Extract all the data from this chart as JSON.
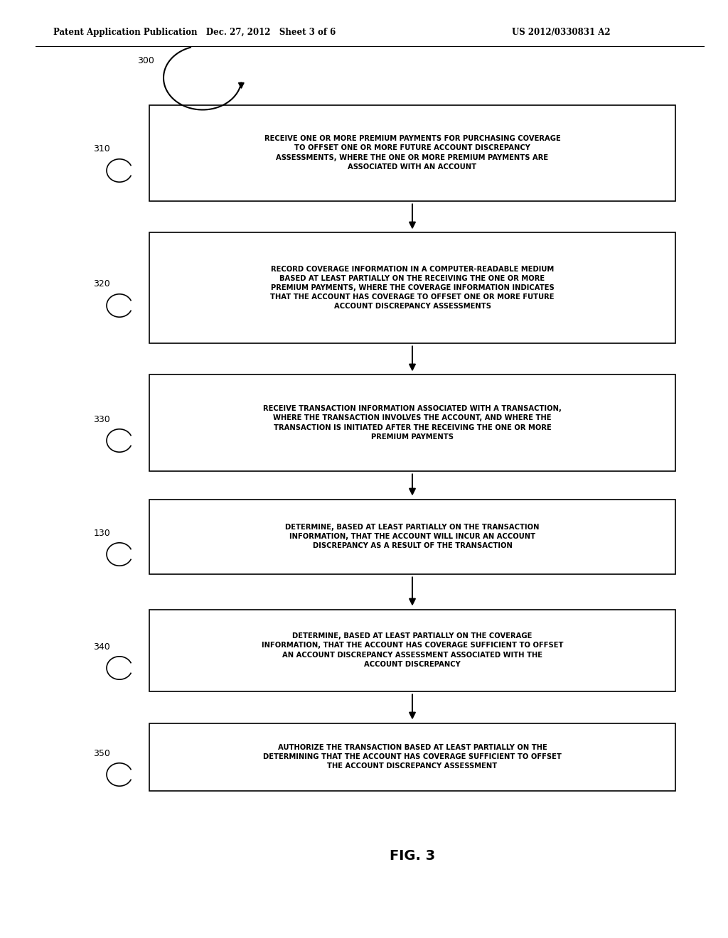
{
  "bg_color": "#ffffff",
  "header_left": "Patent Application Publication   Dec. 27, 2012   Sheet 3 of 6",
  "header_right": "US 2012/0330831 A2",
  "fig_label": "FIG. 3",
  "start_label": "300",
  "boxes": [
    {
      "label": "310",
      "text": "RECEIVE ONE OR MORE PREMIUM PAYMENTS FOR PURCHASING COVERAGE\nTO OFFSET ONE OR MORE FUTURE ACCOUNT DISCREPANCY\nASSESSMENTS, WHERE THE ONE OR MORE PREMIUM PAYMENTS ARE\nASSOCIATED WITH AN ACCOUNT"
    },
    {
      "label": "320",
      "text": "RECORD COVERAGE INFORMATION IN A COMPUTER-READABLE MEDIUM\nBASED AT LEAST PARTIALLY ON THE RECEIVING THE ONE OR MORE\nPREMIUM PAYMENTS, WHERE THE COVERAGE INFORMATION INDICATES\nTHAT THE ACCOUNT HAS COVERAGE TO OFFSET ONE OR MORE FUTURE\nACCOUNT DISCREPANCY ASSESSMENTS"
    },
    {
      "label": "330",
      "text": "RECEIVE TRANSACTION INFORMATION ASSOCIATED WITH A TRANSACTION,\nWHERE THE TRANSACTION INVOLVES THE ACCOUNT, AND WHERE THE\nTRANSACTION IS INITIATED AFTER THE RECEIVING THE ONE OR MORE\nPREMIUM PAYMENTS"
    },
    {
      "label": "130",
      "text": "DETERMINE, BASED AT LEAST PARTIALLY ON THE TRANSACTION\nINFORMATION, THAT THE ACCOUNT WILL INCUR AN ACCOUNT\nDISCREPANCY AS A RESULT OF THE TRANSACTION"
    },
    {
      "label": "340",
      "text": "DETERMINE, BASED AT LEAST PARTIALLY ON THE COVERAGE\nINFORMATION, THAT THE ACCOUNT HAS COVERAGE SUFFICIENT TO OFFSET\nAN ACCOUNT DISCREPANCY ASSESSMENT ASSOCIATED WITH THE\nACCOUNT DISCREPANCY"
    },
    {
      "label": "350",
      "text": "AUTHORIZE THE TRANSACTION BASED AT LEAST PARTIALLY ON THE\nDETERMINING THAT THE ACCOUNT HAS COVERAGE SUFFICIENT TO OFFSET\nTHE ACCOUNT DISCREPANCY ASSESSMENT"
    }
  ],
  "box_color": "#ffffff",
  "box_edge_color": "#000000",
  "text_color": "#000000",
  "arrow_color": "#000000"
}
